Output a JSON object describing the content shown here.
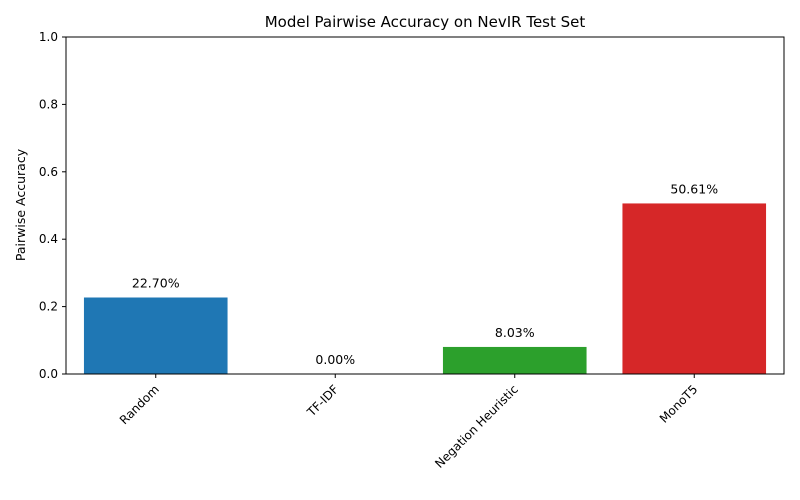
{
  "chart_data": {
    "type": "bar",
    "title": "Model Pairwise Accuracy on NevIR Test Set",
    "xlabel": "",
    "ylabel": "Pairwise Accuracy",
    "categories": [
      "Random",
      "TF-IDF",
      "Negation Heuristic",
      "MonoT5"
    ],
    "values": [
      0.227,
      0.0,
      0.0803,
      0.5061
    ],
    "data_labels": [
      "22.70%",
      "0.00%",
      "8.03%",
      "50.61%"
    ],
    "colors": [
      "#1f77b4",
      "#ff7f0e",
      "#2ca02c",
      "#d62728"
    ],
    "ylim": [
      0,
      1.0
    ],
    "yticks": [
      0.0,
      0.2,
      0.4,
      0.6,
      0.8,
      1.0
    ],
    "ytick_labels": [
      "0.0",
      "0.2",
      "0.4",
      "0.6",
      "0.8",
      "1.0"
    ],
    "grid": false,
    "legend": "none"
  }
}
